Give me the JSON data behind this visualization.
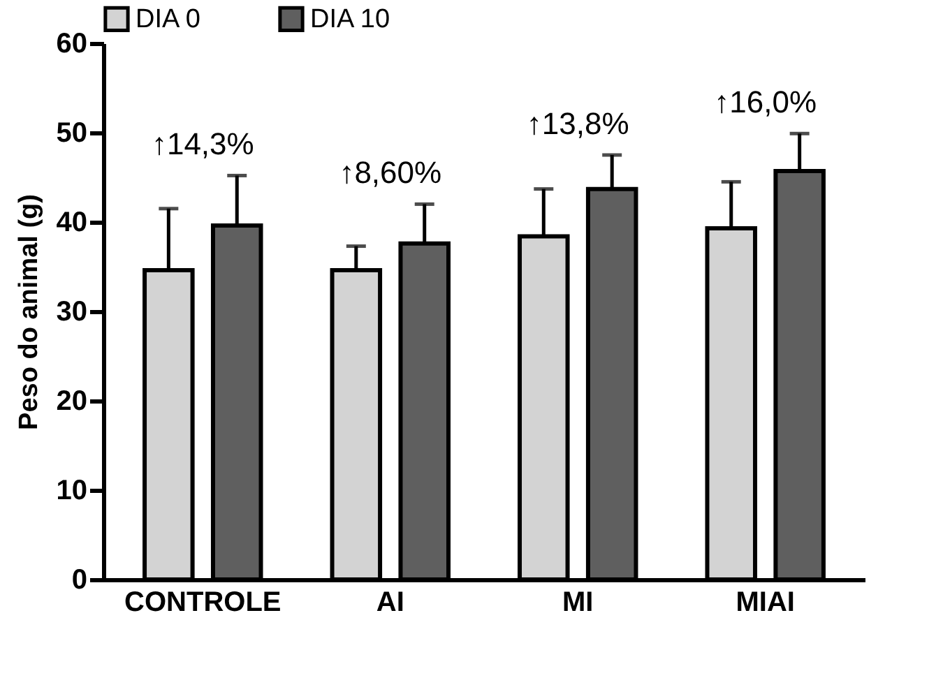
{
  "chart_data": {
    "type": "bar",
    "ylabel": "Peso do animal (g)",
    "categories": [
      "CONTROLE",
      "AI",
      "MI",
      "MIAI"
    ],
    "series": [
      {
        "name": "DIA 0",
        "color": "#d3d3d3",
        "values": [
          34.6,
          34.6,
          38.4,
          39.3
        ],
        "errors": [
          [
            34.6,
            41.5
          ],
          [
            34.6,
            37.3
          ],
          [
            38.4,
            43.7
          ],
          [
            39.3,
            44.5
          ]
        ]
      },
      {
        "name": "DIA 10",
        "color": "#5f5f5f",
        "values": [
          39.6,
          37.6,
          43.7,
          45.7
        ],
        "errors": [
          [
            39.6,
            45.2
          ],
          [
            37.6,
            42.0
          ],
          [
            43.7,
            47.5
          ],
          [
            45.7,
            49.9
          ]
        ]
      }
    ],
    "ylim": [
      0,
      60
    ],
    "yticks": [
      0,
      10,
      20,
      30,
      40,
      50,
      60
    ],
    "grid": false,
    "legend": "top",
    "annotations": [
      "↑14,3%",
      "↑8,60%",
      "↑13,8%",
      "↑16,0%"
    ]
  }
}
